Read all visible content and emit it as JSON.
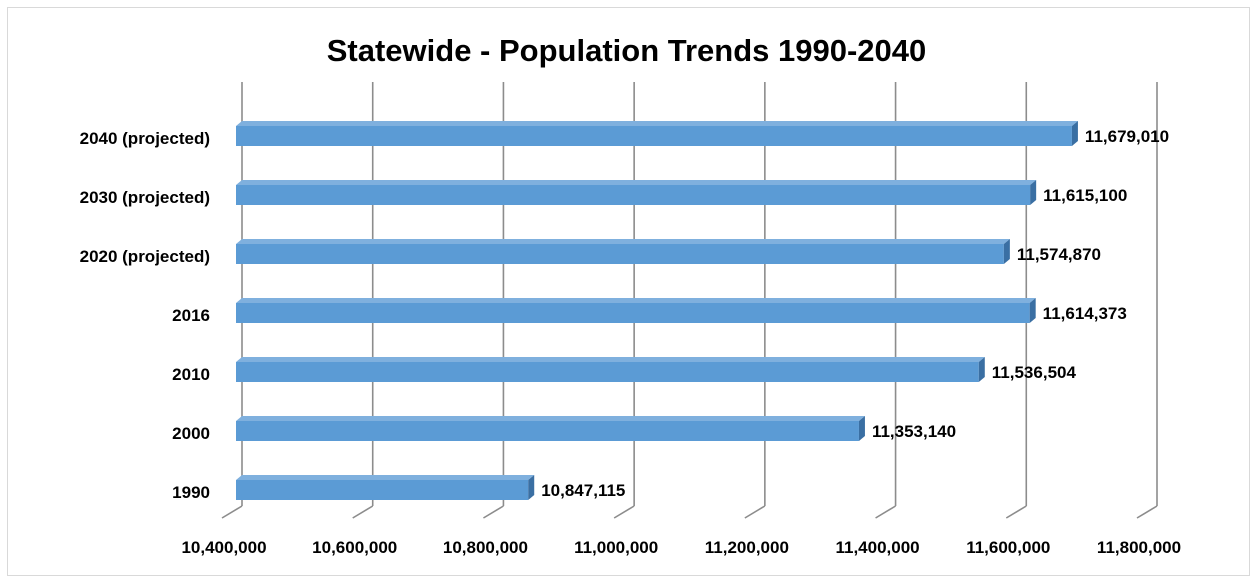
{
  "chart_data": {
    "type": "bar",
    "orientation": "horizontal",
    "title": "Statewide - Population Trends 1990-2040",
    "categories": [
      "1990",
      "2000",
      "2010",
      "2016",
      "2020 (projected)",
      "2030 (projected)",
      "2040 (projected)"
    ],
    "values": [
      10847115,
      11353140,
      11536504,
      11614373,
      11574870,
      11615100,
      11679010
    ],
    "value_labels": [
      "10,847,115",
      "11,353,140",
      "11,536,504",
      "11,614,373",
      "11,574,870",
      "11,615,100",
      "11,679,010"
    ],
    "xlim": [
      10400000,
      11800000
    ],
    "x_ticks": [
      10400000,
      10600000,
      10800000,
      11000000,
      11200000,
      11400000,
      11600000,
      11800000
    ],
    "x_tick_labels": [
      "10,400,000",
      "10,600,000",
      "10,800,000",
      "11,000,000",
      "11,200,000",
      "11,400,000",
      "11,600,000",
      "11,800,000"
    ],
    "xlabel": "",
    "ylabel": "",
    "grid": "vertical",
    "legend": "none",
    "bar_color": "#5b9bd5",
    "bar_shade_color": "#3a6fa3",
    "grid_color": "#8c8c8c"
  }
}
